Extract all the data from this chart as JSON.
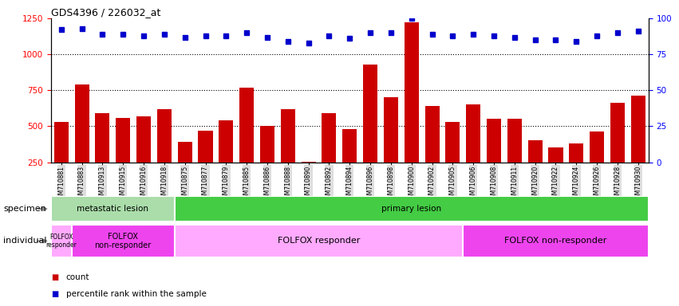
{
  "title": "GDS4396 / 226032_at",
  "samples": [
    "GSM710881",
    "GSM710883",
    "GSM710913",
    "GSM710915",
    "GSM710916",
    "GSM710918",
    "GSM710875",
    "GSM710877",
    "GSM710879",
    "GSM710885",
    "GSM710886",
    "GSM710888",
    "GSM710890",
    "GSM710892",
    "GSM710894",
    "GSM710896",
    "GSM710898",
    "GSM710900",
    "GSM710902",
    "GSM710905",
    "GSM710906",
    "GSM710908",
    "GSM710911",
    "GSM710920",
    "GSM710922",
    "GSM710924",
    "GSM710926",
    "GSM710928",
    "GSM710930"
  ],
  "counts": [
    530,
    790,
    590,
    560,
    570,
    620,
    390,
    470,
    540,
    770,
    500,
    620,
    255,
    590,
    480,
    930,
    700,
    1220,
    640,
    530,
    650,
    550,
    550,
    400,
    350,
    380,
    465,
    665,
    710
  ],
  "percentile_ranks": [
    92,
    93,
    89,
    89,
    88,
    89,
    87,
    88,
    88,
    90,
    87,
    84,
    83,
    88,
    86,
    90,
    90,
    100,
    89,
    88,
    89,
    88,
    87,
    85,
    85,
    84,
    88,
    90,
    91
  ],
  "bar_color": "#cc0000",
  "dot_color": "#0000cc",
  "ylim_left": [
    250,
    1250
  ],
  "ylim_right": [
    0,
    100
  ],
  "yticks_left": [
    250,
    500,
    750,
    1000,
    1250
  ],
  "yticks_right": [
    0,
    25,
    50,
    75,
    100
  ],
  "gridlines_at": [
    500,
    750,
    1000
  ],
  "specimen_groups": [
    {
      "label": "metastatic lesion",
      "start": 0,
      "end": 6,
      "color": "#aaddaa"
    },
    {
      "label": "primary lesion",
      "start": 6,
      "end": 29,
      "color": "#44cc44"
    }
  ],
  "individual_groups": [
    {
      "label": "FOLFOX\nresponder",
      "start": 0,
      "end": 1,
      "color": "#ffaaff",
      "fontsize": 5.5
    },
    {
      "label": "FOLFOX\nnon-responder",
      "start": 1,
      "end": 6,
      "color": "#ee44ee",
      "fontsize": 7
    },
    {
      "label": "FOLFOX responder",
      "start": 6,
      "end": 20,
      "color": "#ffaaff",
      "fontsize": 8
    },
    {
      "label": "FOLFOX non-responder",
      "start": 20,
      "end": 29,
      "color": "#ee44ee",
      "fontsize": 8
    }
  ],
  "specimen_label": "specimen",
  "individual_label": "individual",
  "legend_count_color": "#cc0000",
  "legend_dot_color": "#0000cc"
}
